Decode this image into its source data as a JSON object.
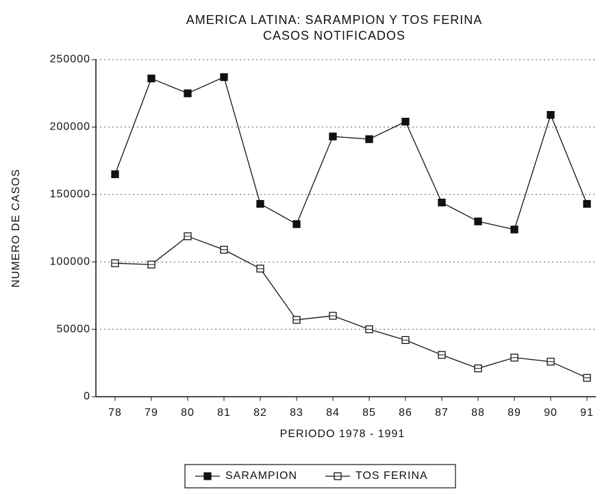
{
  "chart_data": {
    "type": "line",
    "title": "AMERICA LATINA: SARAMPION Y TOS FERINA",
    "subtitle": "CASOS NOTIFICADOS",
    "x_label": "PERIODO 1978 - 1991",
    "y_label": "NUMERO DE CASOS",
    "categories": [
      "78",
      "79",
      "80",
      "81",
      "82",
      "83",
      "84",
      "85",
      "86",
      "87",
      "88",
      "89",
      "90",
      "91"
    ],
    "series": [
      {
        "name": "SARAMPION",
        "color": "#111111",
        "marker": "filled",
        "values": [
          165000,
          236000,
          225000,
          237000,
          143000,
          128000,
          193000,
          191000,
          204000,
          144000,
          130000,
          124000,
          209000,
          143000
        ]
      },
      {
        "name": "TOS FERINA",
        "color": "#111111",
        "marker": "open",
        "values": [
          99000,
          98000,
          119000,
          109000,
          95000,
          57000,
          60000,
          50000,
          42000,
          31000,
          21000,
          29000,
          26000,
          14000
        ]
      }
    ],
    "ylim": [
      0,
      250000
    ],
    "yticks": [
      0,
      50000,
      100000,
      150000,
      200000,
      250000
    ],
    "grid": true,
    "legend": "bottom"
  }
}
